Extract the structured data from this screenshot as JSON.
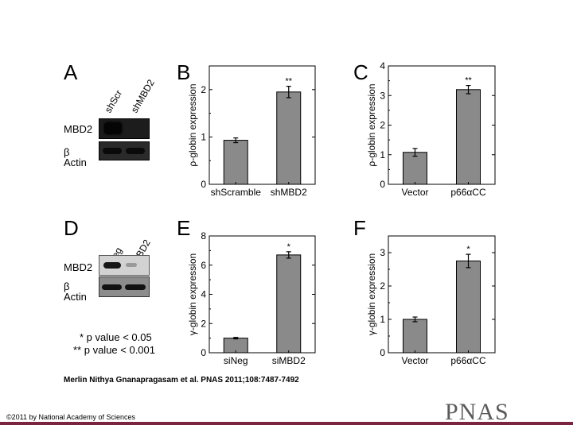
{
  "panel_letters": [
    "A",
    "B",
    "C",
    "D",
    "E",
    "F"
  ],
  "blots": [
    {
      "lanes": [
        "shScr",
        "shMBD2"
      ],
      "rows": [
        {
          "label": "MBD2",
          "bands": [
            1,
            0
          ]
        },
        {
          "label": "β Actin",
          "bands": [
            1,
            1
          ]
        }
      ]
    },
    {
      "lanes": [
        "siNeg",
        "siMBD2"
      ],
      "rows": [
        {
          "label": "MBD2",
          "bands": [
            1,
            0.25
          ]
        },
        {
          "label": "β Actin",
          "bands": [
            1,
            1
          ]
        }
      ]
    }
  ],
  "significance_legend": [
    "* p value < 0.05",
    "** p value < 0.001"
  ],
  "citation": "Merlin Nithya Gnanapragasam et al. PNAS 2011;108:7487-7492",
  "copyright": "©2011 by National Academy of Sciences",
  "logo_text": "PNAS",
  "colors": {
    "bar_fill": "#8a8a8a",
    "bottom_rule": "#7a2341",
    "logo": "#5a5a5a"
  },
  "chart_data": [
    {
      "panel": "B",
      "type": "bar",
      "categories": [
        "shScramble",
        "shMBD2"
      ],
      "values": [
        0.93,
        1.95
      ],
      "errors": [
        0.05,
        0.12
      ],
      "annotations": [
        "",
        "**"
      ],
      "ylabel": "ρ-globin expression",
      "ylim": [
        0,
        2.5
      ],
      "yticks": [
        0,
        1,
        2
      ]
    },
    {
      "panel": "C",
      "type": "bar",
      "categories": [
        "Vector",
        "p66αCC"
      ],
      "values": [
        1.08,
        3.2
      ],
      "errors": [
        0.13,
        0.14
      ],
      "annotations": [
        "",
        "**"
      ],
      "ylabel": "ρ-globin expression",
      "ylim": [
        0,
        4
      ],
      "yticks": [
        0,
        1,
        2,
        3,
        4
      ]
    },
    {
      "panel": "E",
      "type": "bar",
      "categories": [
        "siNeg",
        "siMBD2"
      ],
      "values": [
        1.0,
        6.7
      ],
      "errors": [
        0.05,
        0.22
      ],
      "annotations": [
        "",
        "*"
      ],
      "ylabel": "γ-globin expression",
      "ylim": [
        0,
        8
      ],
      "yticks": [
        0,
        2,
        4,
        6,
        8
      ]
    },
    {
      "panel": "F",
      "type": "bar",
      "categories": [
        "Vector",
        "p66αCC"
      ],
      "values": [
        1.0,
        2.75
      ],
      "errors": [
        0.07,
        0.2
      ],
      "annotations": [
        "",
        "*"
      ],
      "ylabel": "γ-globin expression",
      "ylim": [
        0,
        3.5
      ],
      "yticks": [
        0,
        1,
        2,
        3
      ]
    }
  ]
}
